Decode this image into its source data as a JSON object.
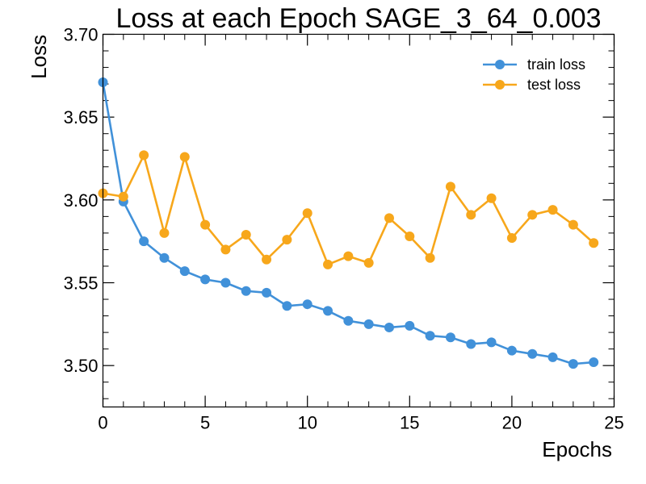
{
  "chart_data": {
    "type": "line",
    "title": "Loss at each Epoch SAGE_3_64_0.003",
    "xlabel": "Epochs",
    "ylabel": "Loss",
    "xlim": [
      0,
      25
    ],
    "ylim": [
      3.475,
      3.7
    ],
    "x_ticks": [
      0,
      5,
      10,
      15,
      20,
      25
    ],
    "x_tick_labels": [
      "0",
      "5",
      "10",
      "15",
      "20",
      "25"
    ],
    "y_ticks": [
      3.5,
      3.55,
      3.6,
      3.65,
      3.7
    ],
    "y_tick_labels": [
      "3.50",
      "3.55",
      "3.60",
      "3.65",
      "3.70"
    ],
    "grid": false,
    "legend_position": "top-right",
    "x": [
      0,
      1,
      2,
      3,
      4,
      5,
      6,
      7,
      8,
      9,
      10,
      11,
      12,
      13,
      14,
      15,
      16,
      17,
      18,
      19,
      20,
      21,
      22,
      23,
      24
    ],
    "series": [
      {
        "name": "train loss",
        "color": "#4191d9",
        "values": [
          3.671,
          3.599,
          3.575,
          3.565,
          3.557,
          3.552,
          3.55,
          3.545,
          3.544,
          3.536,
          3.537,
          3.533,
          3.527,
          3.525,
          3.523,
          3.524,
          3.518,
          3.517,
          3.513,
          3.514,
          3.509,
          3.507,
          3.505,
          3.501,
          3.502
        ]
      },
      {
        "name": "test loss",
        "color": "#f7a71b",
        "values": [
          3.604,
          3.602,
          3.627,
          3.58,
          3.626,
          3.585,
          3.57,
          3.579,
          3.564,
          3.576,
          3.592,
          3.561,
          3.566,
          3.562,
          3.589,
          3.578,
          3.565,
          3.608,
          3.591,
          3.601,
          3.577,
          3.591,
          3.594,
          3.585,
          3.574
        ]
      }
    ]
  }
}
